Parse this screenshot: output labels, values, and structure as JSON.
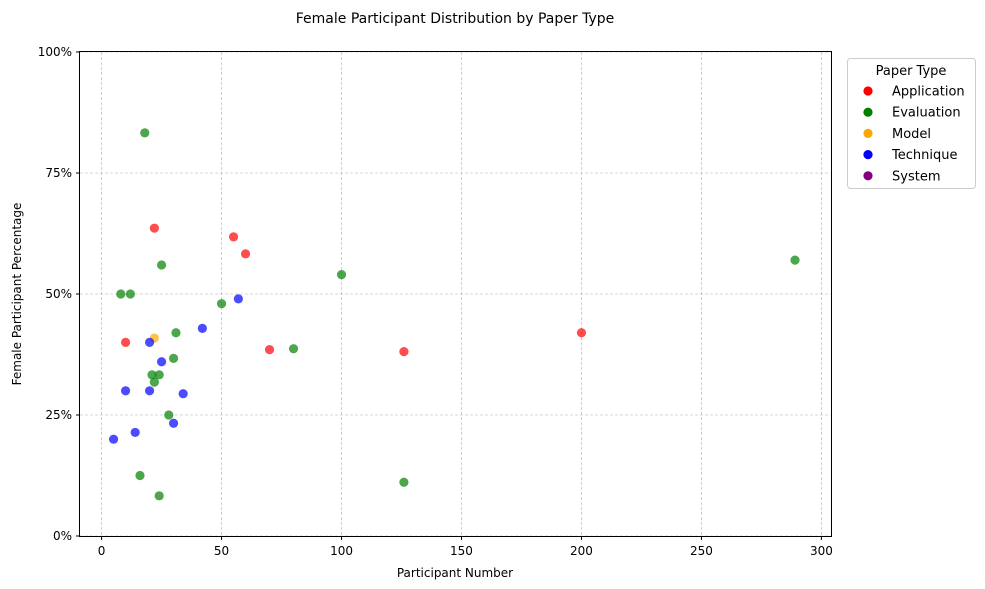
{
  "chart_data": {
    "type": "scatter",
    "title": "Female Participant Distribution by Paper Type",
    "xlabel": "Participant Number",
    "ylabel": "Female Participant Percentage",
    "xlim": [
      -9,
      304
    ],
    "ylim": [
      0,
      1
    ],
    "x_ticks": [
      0,
      50,
      100,
      150,
      200,
      250,
      300
    ],
    "y_ticks": [
      0,
      0.25,
      0.5,
      0.75,
      1.0
    ],
    "x_tick_labels": [
      "0",
      "50",
      "100",
      "150",
      "200",
      "250",
      "300"
    ],
    "y_tick_labels": [
      "0%",
      "25%",
      "50%",
      "75%",
      "100%"
    ],
    "grid": true,
    "legend": {
      "title": "Paper Type",
      "placement": "outside-top-right",
      "entries": [
        "Application",
        "Evaluation",
        "Model",
        "Technique",
        "System"
      ]
    },
    "colors": {
      "Application": "#ff0000",
      "Evaluation": "#008000",
      "Model": "#ffa500",
      "Technique": "#0000ff",
      "System": "#800080"
    },
    "series": [
      {
        "name": "Application",
        "points": [
          {
            "x": 22,
            "y": 0.636
          },
          {
            "x": 55,
            "y": 0.618
          },
          {
            "x": 60,
            "y": 0.583
          },
          {
            "x": 10,
            "y": 0.4
          },
          {
            "x": 70,
            "y": 0.385
          },
          {
            "x": 126,
            "y": 0.381
          },
          {
            "x": 200,
            "y": 0.42
          }
        ]
      },
      {
        "name": "Evaluation",
        "points": [
          {
            "x": 18,
            "y": 0.833
          },
          {
            "x": 25,
            "y": 0.56
          },
          {
            "x": 100,
            "y": 0.54
          },
          {
            "x": 289,
            "y": 0.57
          },
          {
            "x": 8,
            "y": 0.5
          },
          {
            "x": 12,
            "y": 0.5
          },
          {
            "x": 50,
            "y": 0.48
          },
          {
            "x": 31,
            "y": 0.42
          },
          {
            "x": 80,
            "y": 0.387
          },
          {
            "x": 30,
            "y": 0.367
          },
          {
            "x": 21,
            "y": 0.333
          },
          {
            "x": 24,
            "y": 0.333
          },
          {
            "x": 22,
            "y": 0.318
          },
          {
            "x": 28,
            "y": 0.25
          },
          {
            "x": 16,
            "y": 0.125
          },
          {
            "x": 126,
            "y": 0.111
          },
          {
            "x": 24,
            "y": 0.083
          }
        ]
      },
      {
        "name": "Model",
        "points": [
          {
            "x": 22,
            "y": 0.409
          }
        ]
      },
      {
        "name": "Technique",
        "points": [
          {
            "x": 57,
            "y": 0.49
          },
          {
            "x": 42,
            "y": 0.429
          },
          {
            "x": 20,
            "y": 0.4
          },
          {
            "x": 25,
            "y": 0.36
          },
          {
            "x": 10,
            "y": 0.3
          },
          {
            "x": 20,
            "y": 0.3
          },
          {
            "x": 34,
            "y": 0.294
          },
          {
            "x": 30,
            "y": 0.233
          },
          {
            "x": 14,
            "y": 0.214
          },
          {
            "x": 5,
            "y": 0.2
          }
        ]
      },
      {
        "name": "System",
        "points": []
      }
    ]
  }
}
